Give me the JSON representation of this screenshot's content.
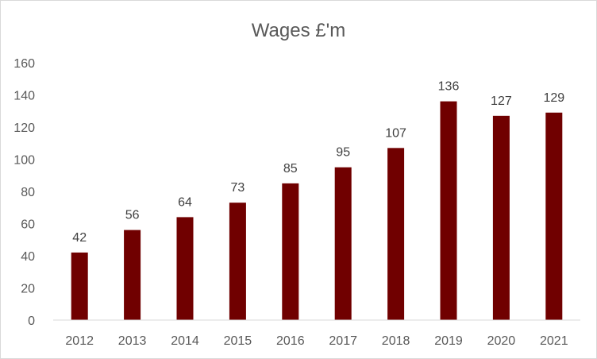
{
  "chart_data": {
    "type": "bar",
    "title": "Wages £'m",
    "xlabel": "",
    "ylabel": "",
    "categories": [
      "2012",
      "2013",
      "2014",
      "2015",
      "2016",
      "2017",
      "2018",
      "2019",
      "2020",
      "2021"
    ],
    "values": [
      42,
      56,
      64,
      73,
      85,
      95,
      107,
      136,
      127,
      129
    ],
    "ylim": [
      0,
      160
    ],
    "yticks": [
      0,
      20,
      40,
      60,
      80,
      100,
      120,
      140,
      160
    ],
    "grid": false,
    "legend": "none",
    "bar_color": "#700000",
    "axis_color": "#d9d9d9"
  }
}
